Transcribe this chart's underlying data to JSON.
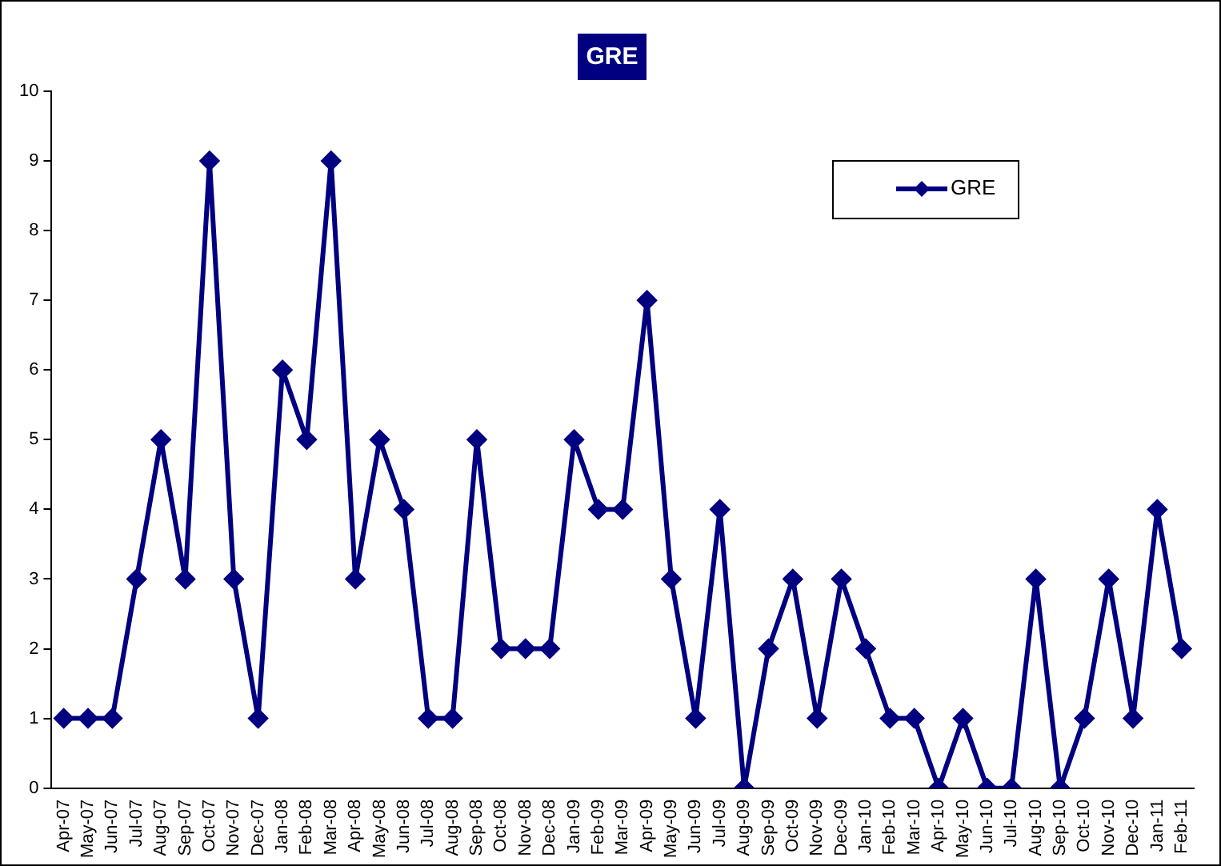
{
  "chart_data": {
    "type": "line",
    "title": "GRE",
    "categories": [
      "Apr-07",
      "May-07",
      "Jun-07",
      "Jul-07",
      "Aug-07",
      "Sep-07",
      "Oct-07",
      "Nov-07",
      "Dec-07",
      "Jan-08",
      "Feb-08",
      "Mar-08",
      "Apr-08",
      "May-08",
      "Jun-08",
      "Jul-08",
      "Aug-08",
      "Sep-08",
      "Oct-08",
      "Nov-08",
      "Dec-08",
      "Jan-09",
      "Feb-09",
      "Mar-09",
      "Apr-09",
      "May-09",
      "Jun-09",
      "Jul-09",
      "Aug-09",
      "Sep-09",
      "Oct-09",
      "Nov-09",
      "Dec-09",
      "Jan-10",
      "Feb-10",
      "Mar-10",
      "Apr-10",
      "May-10",
      "Jun-10",
      "Jul-10",
      "Aug-10",
      "Sep-10",
      "Oct-10",
      "Nov-10",
      "Dec-10",
      "Jan-11",
      "Feb-11"
    ],
    "series": [
      {
        "name": "GRE",
        "color": "#000080",
        "values": [
          1,
          1,
          1,
          3,
          5,
          3,
          9,
          3,
          1,
          6,
          5,
          9,
          3,
          5,
          4,
          1,
          1,
          5,
          2,
          2,
          2,
          5,
          4,
          4,
          7,
          3,
          1,
          4,
          0,
          2,
          3,
          1,
          3,
          2,
          1,
          1,
          0,
          1,
          0,
          0,
          3,
          0,
          1,
          3,
          1,
          4,
          2
        ]
      }
    ],
    "ylim": [
      0,
      10
    ],
    "yticks": [
      0,
      1,
      2,
      3,
      4,
      5,
      6,
      7,
      8,
      9,
      10
    ],
    "grid": false,
    "legend": "top right",
    "marker": "diamond",
    "line_style": "solid"
  }
}
